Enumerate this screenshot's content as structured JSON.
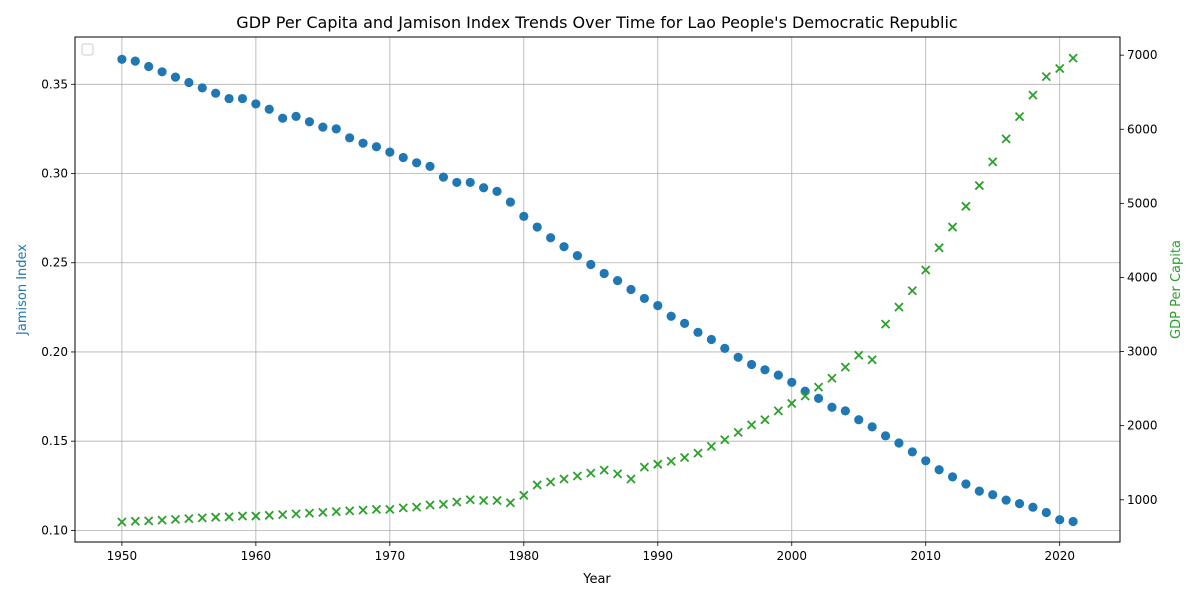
{
  "chart_data": {
    "type": "scatter",
    "title": "GDP Per Capita and Jamison Index Trends Over Time for Lao People's Democratic Republic",
    "xlabel": "Year",
    "ylabel_left": "Jamison Index",
    "ylabel_right": "GDP Per Capita",
    "xlim": [
      1946.5,
      2024.5
    ],
    "ylim_left": [
      0.0935,
      0.3765
    ],
    "ylim_right": [
      430,
      7245
    ],
    "x_ticks": [
      1950,
      1960,
      1970,
      1980,
      1990,
      2000,
      2010,
      2020
    ],
    "y_ticks_left": [
      0.1,
      0.15,
      0.2,
      0.25,
      0.3,
      0.35
    ],
    "y_ticks_right": [
      1000,
      2000,
      3000,
      4000,
      5000,
      6000,
      7000
    ],
    "grid": true,
    "legend": "top-left (empty)",
    "colors": {
      "left": "#1f77b4",
      "right": "#2ca02c"
    },
    "series": [
      {
        "axis": "left",
        "marker": "circle",
        "x": [
          1950,
          1951,
          1952,
          1953,
          1954,
          1955,
          1956,
          1957,
          1958,
          1959,
          1960,
          1961,
          1962,
          1963,
          1964,
          1965,
          1966,
          1967,
          1968,
          1969,
          1970,
          1971,
          1972,
          1973,
          1974,
          1975,
          1976,
          1977,
          1978,
          1979,
          1980,
          1981,
          1982,
          1983,
          1984,
          1985,
          1986,
          1987,
          1988,
          1989,
          1990,
          1991,
          1992,
          1993,
          1994,
          1995,
          1996,
          1997,
          1998,
          1999,
          2000,
          2001,
          2002,
          2003,
          2004,
          2005,
          2006,
          2007,
          2008,
          2009,
          2010,
          2011,
          2012,
          2013,
          2014,
          2015,
          2016,
          2017,
          2018,
          2019,
          2020,
          2021
        ],
        "values": [
          0.364,
          0.363,
          0.36,
          0.357,
          0.354,
          0.351,
          0.348,
          0.345,
          0.342,
          0.342,
          0.339,
          0.336,
          0.331,
          0.332,
          0.329,
          0.326,
          0.325,
          0.32,
          0.317,
          0.315,
          0.312,
          0.309,
          0.306,
          0.304,
          0.298,
          0.295,
          0.295,
          0.292,
          0.29,
          0.284,
          0.276,
          0.27,
          0.264,
          0.259,
          0.254,
          0.249,
          0.244,
          0.24,
          0.235,
          0.23,
          0.226,
          0.22,
          0.216,
          0.211,
          0.207,
          0.202,
          0.197,
          0.193,
          0.19,
          0.187,
          0.183,
          0.178,
          0.174,
          0.169,
          0.167,
          0.162,
          0.158,
          0.153,
          0.149,
          0.144,
          0.139,
          0.134,
          0.13,
          0.126,
          0.122,
          0.12,
          0.117,
          0.115,
          0.113,
          0.11,
          0.106,
          0.105
        ]
      },
      {
        "axis": "right",
        "marker": "x",
        "x": [
          1950,
          1951,
          1952,
          1953,
          1954,
          1955,
          1956,
          1957,
          1958,
          1959,
          1960,
          1961,
          1962,
          1963,
          1964,
          1965,
          1966,
          1967,
          1968,
          1969,
          1970,
          1971,
          1972,
          1973,
          1974,
          1975,
          1976,
          1977,
          1978,
          1979,
          1980,
          1981,
          1982,
          1983,
          1984,
          1985,
          1986,
          1987,
          1988,
          1989,
          1990,
          1991,
          1992,
          1993,
          1994,
          1995,
          1996,
          1997,
          1998,
          1999,
          2000,
          2001,
          2002,
          2003,
          2004,
          2005,
          2006,
          2007,
          2008,
          2009,
          2010,
          2011,
          2012,
          2013,
          2014,
          2015,
          2016,
          2017,
          2018,
          2019,
          2020,
          2021
        ],
        "values": [
          700,
          710,
          715,
          725,
          735,
          745,
          755,
          765,
          770,
          780,
          780,
          790,
          800,
          810,
          820,
          830,
          840,
          850,
          860,
          870,
          870,
          890,
          900,
          930,
          940,
          970,
          1000,
          990,
          990,
          960,
          1060,
          1200,
          1240,
          1280,
          1320,
          1360,
          1400,
          1350,
          1280,
          1440,
          1480,
          1520,
          1570,
          1630,
          1720,
          1810,
          1910,
          2010,
          2080,
          2200,
          2300,
          2400,
          2520,
          2640,
          2790,
          2950,
          2890,
          3370,
          3600,
          3820,
          4100,
          4400,
          4680,
          4960,
          5240,
          5560,
          5870,
          6170,
          6460,
          6710,
          6820,
          6960
        ]
      }
    ]
  }
}
